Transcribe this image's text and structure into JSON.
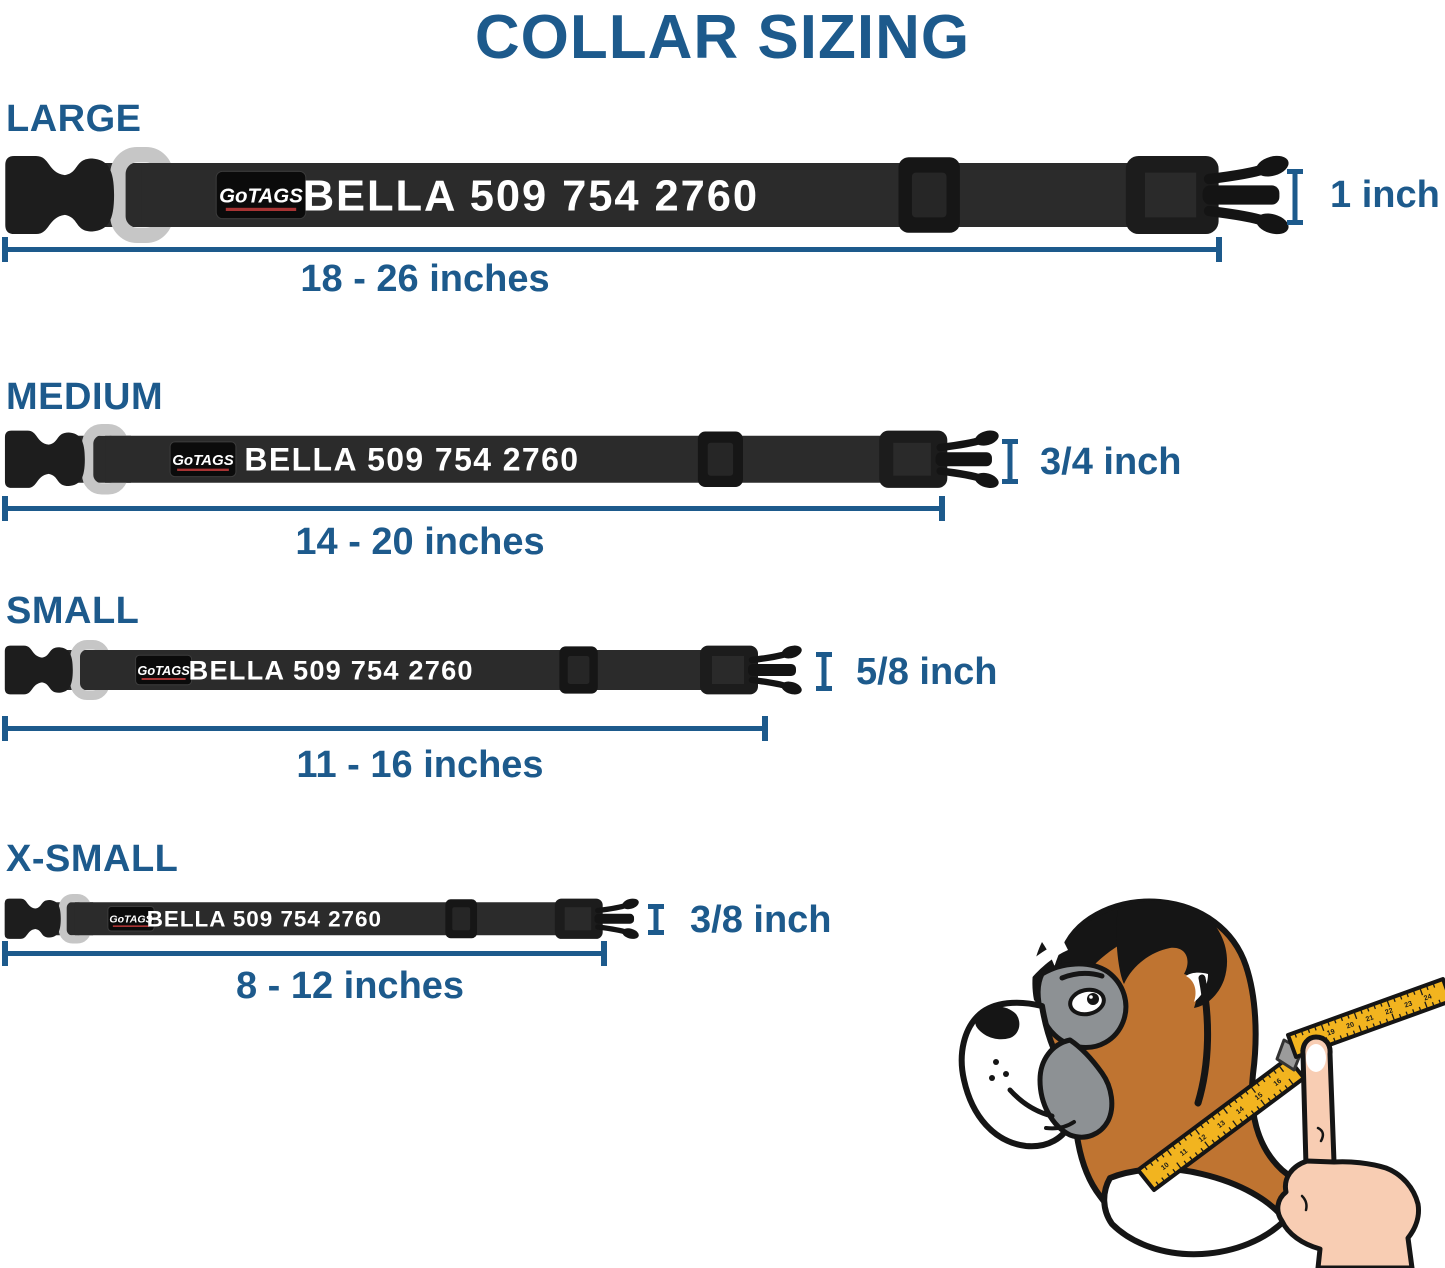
{
  "title": "COLLAR SIZING",
  "brand_logo": "GoTAGS",
  "collar_personalization": "BELLA 509 754 2760",
  "sizes": [
    {
      "id": "large",
      "label": "LARGE",
      "range": "18 - 26 inches",
      "width": "1 inch"
    },
    {
      "id": "medium",
      "label": "MEDIUM",
      "range": "14 - 20 inches",
      "width": "3/4 inch"
    },
    {
      "id": "small",
      "label": "SMALL",
      "range": "11 - 16 inches",
      "width": "5/8 inch"
    },
    {
      "id": "xsmall",
      "label": "X-SMALL",
      "range": "8 - 12 inches",
      "width": "3/8 inch"
    }
  ],
  "tape": {
    "lower_numbers": [
      "10",
      "11",
      "12",
      "13",
      "14",
      "15",
      "16"
    ],
    "upper_numbers": [
      "18",
      "19",
      "20",
      "21",
      "22",
      "23",
      "24"
    ]
  },
  "colors": {
    "accent_blue": "#1d5a8c",
    "strap": "#2b2b2b",
    "buckle": "#1d1d1d",
    "d_ring": "#c6c6c6",
    "logo_red": "#a83434",
    "tape_yellow": "#f2b41f",
    "fur_brown": "#bf7431",
    "hand_pink": "#f8cdb3",
    "mask_gray": "#8d9194"
  }
}
